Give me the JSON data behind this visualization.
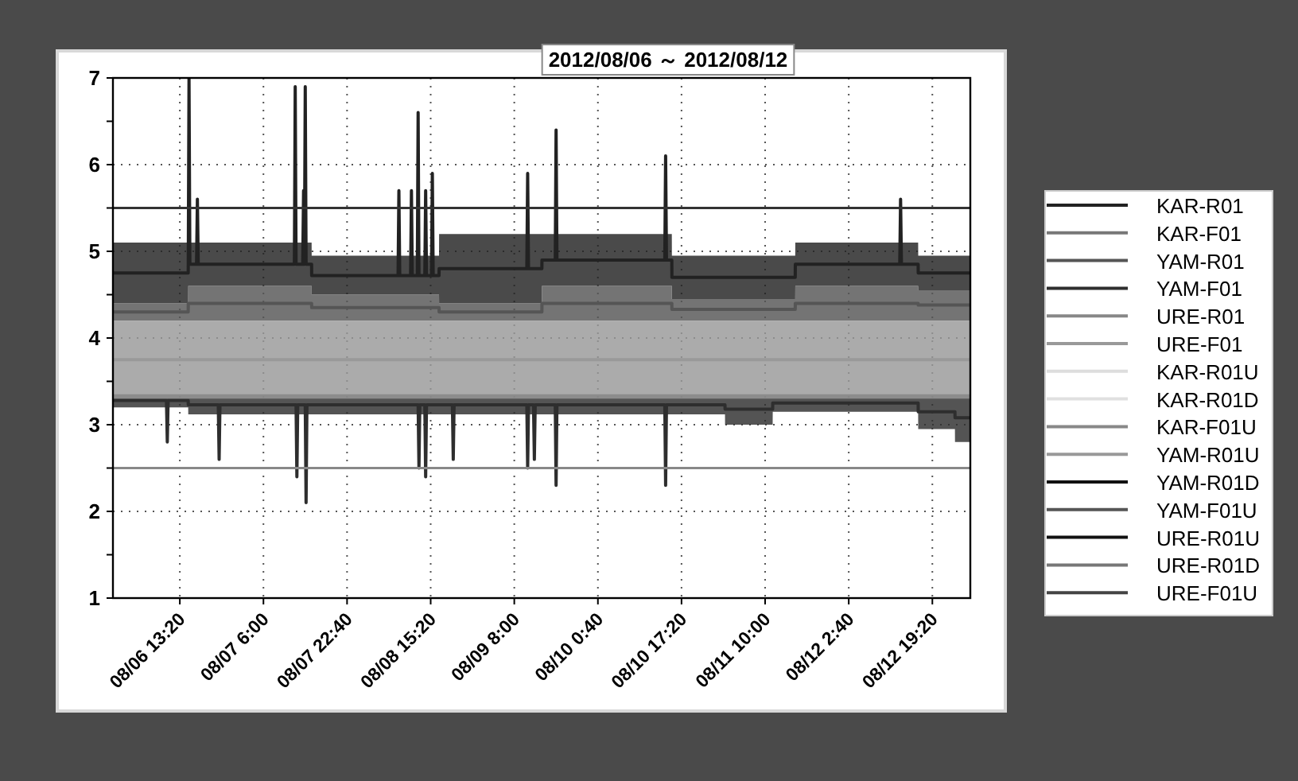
{
  "chart_data": {
    "type": "line",
    "title": "2012/08/06 ～ 2012/08/12",
    "xlim": [
      "2012-08-06T00:00",
      "2012-08-13T02:54"
    ],
    "xticks": [
      {
        "value": "2012-08-06T13:20",
        "label": "08/06 13:20"
      },
      {
        "value": "2012-08-07T06:00",
        "label": "08/07 6:00"
      },
      {
        "value": "2012-08-07T22:40",
        "label": "08/07 22:40"
      },
      {
        "value": "2012-08-08T15:20",
        "label": "08/08 15:20"
      },
      {
        "value": "2012-08-09T08:00",
        "label": "08/09 8:00"
      },
      {
        "value": "2012-08-10T00:40",
        "label": "08/10 0:40"
      },
      {
        "value": "2012-08-10T17:20",
        "label": "08/10 17:20"
      },
      {
        "value": "2012-08-11T10:00",
        "label": "08/11 10:00"
      },
      {
        "value": "2012-08-12T02:40",
        "label": "08/12 2:40"
      },
      {
        "value": "2012-08-12T19:20",
        "label": "08/12 19:20"
      }
    ],
    "ylim": [
      1,
      7
    ],
    "yticks": [
      1,
      {
        "value": 1.5,
        "label": null
      },
      2,
      {
        "value": 2.5,
        "label": null
      },
      3,
      {
        "value": 3.5,
        "label": null
      },
      4,
      {
        "value": 4.5,
        "label": null
      },
      5,
      {
        "value": 5.5,
        "label": null
      },
      6,
      {
        "value": 6.5,
        "label": null
      },
      7
    ],
    "grid": true,
    "legend": "right",
    "ref_lines": [
      {
        "axis": "y",
        "value": 5.5,
        "color": "#333333"
      },
      {
        "axis": "y",
        "value": 2.5,
        "color": "#888888"
      }
    ],
    "series": [
      {
        "name": "KAR-R01",
        "color": "#222222",
        "x": [
          "2012-08-06T00:00",
          "2012-08-06T15:00",
          "2012-08-06T15:01",
          "2012-08-06T15:10",
          "2012-08-06T15:20",
          "2012-08-06T16:40",
          "2012-08-06T16:50",
          "2012-08-06T17:00",
          "2012-08-07T12:10",
          "2012-08-07T12:20",
          "2012-08-07T12:30",
          "2012-08-07T13:50",
          "2012-08-07T14:00",
          "2012-08-07T14:10",
          "2012-08-07T14:20",
          "2012-08-07T14:30",
          "2012-08-07T15:36",
          "2012-08-07T15:37",
          "2012-08-08T08:50",
          "2012-08-08T09:00",
          "2012-08-08T09:10",
          "2012-08-08T11:20",
          "2012-08-08T11:30",
          "2012-08-08T11:40",
          "2012-08-08T12:40",
          "2012-08-08T12:50",
          "2012-08-08T13:00",
          "2012-08-08T14:10",
          "2012-08-08T14:20",
          "2012-08-08T14:30",
          "2012-08-08T15:30",
          "2012-08-08T15:40",
          "2012-08-08T15:50",
          "2012-08-08T17:00",
          "2012-08-08T17:01",
          "2012-08-09T10:30",
          "2012-08-09T10:40",
          "2012-08-09T10:50",
          "2012-08-09T13:30",
          "2012-08-09T13:31",
          "2012-08-09T16:10",
          "2012-08-09T16:20",
          "2012-08-09T16:30",
          "2012-08-10T14:00",
          "2012-08-10T14:10",
          "2012-08-10T14:20",
          "2012-08-10T15:24",
          "2012-08-10T15:25",
          "2012-08-11T16:00",
          "2012-08-11T16:01",
          "2012-08-12T12:50",
          "2012-08-12T13:00",
          "2012-08-12T13:10",
          "2012-08-12T16:30",
          "2012-08-12T16:31",
          "2012-08-13T02:54"
        ],
        "values": [
          4.75,
          4.75,
          4.85,
          7.0,
          4.85,
          4.85,
          5.6,
          4.85,
          4.85,
          6.9,
          4.85,
          4.85,
          5.7,
          4.85,
          6.9,
          4.85,
          4.85,
          4.72,
          4.72,
          5.7,
          4.72,
          4.72,
          5.7,
          4.72,
          4.72,
          6.6,
          4.72,
          4.72,
          5.7,
          4.72,
          4.72,
          5.9,
          4.72,
          4.72,
          4.8,
          4.8,
          5.9,
          4.8,
          4.8,
          4.9,
          4.9,
          6.4,
          4.9,
          4.9,
          6.1,
          4.9,
          4.9,
          4.7,
          4.7,
          4.85,
          4.85,
          5.6,
          4.85,
          4.85,
          4.75,
          4.75
        ],
        "lower": [
          4.4,
          4.4,
          4.6,
          4.6,
          4.6,
          4.6,
          4.6,
          4.6,
          4.6,
          4.6,
          4.6,
          4.6,
          4.6,
          4.6,
          4.6,
          4.6,
          4.6,
          4.5,
          4.5,
          4.5,
          4.5,
          4.5,
          4.5,
          4.5,
          4.5,
          4.5,
          4.5,
          4.5,
          4.5,
          4.5,
          4.5,
          4.5,
          4.5,
          4.5,
          4.4,
          4.4,
          4.4,
          4.4,
          4.4,
          4.6,
          4.6,
          4.6,
          4.6,
          4.6,
          4.6,
          4.6,
          4.6,
          4.45,
          4.45,
          4.6,
          4.6,
          4.6,
          4.6,
          4.6,
          4.55,
          4.55
        ],
        "upper": [
          5.1,
          5.1,
          5.1,
          5.1,
          5.1,
          5.1,
          5.1,
          5.1,
          5.1,
          5.1,
          5.1,
          5.1,
          5.1,
          5.1,
          5.1,
          5.1,
          5.1,
          4.95,
          4.95,
          4.95,
          4.95,
          4.95,
          4.95,
          4.95,
          4.95,
          4.95,
          4.95,
          4.95,
          4.95,
          4.95,
          4.95,
          4.95,
          4.95,
          4.95,
          5.2,
          5.2,
          5.2,
          5.2,
          5.2,
          5.2,
          5.2,
          5.2,
          5.2,
          5.2,
          5.2,
          5.2,
          5.2,
          4.95,
          4.95,
          5.1,
          5.1,
          5.1,
          5.1,
          5.1,
          4.95,
          4.95
        ]
      },
      {
        "name": "KAR-F01",
        "color": "#777777"
      },
      {
        "name": "YAM-R01",
        "color": "#555555",
        "x": [
          "2012-08-06T00:00",
          "2012-08-06T15:00",
          "2012-08-06T15:01",
          "2012-08-07T15:36",
          "2012-08-07T15:37",
          "2012-08-08T17:00",
          "2012-08-08T17:01",
          "2012-08-09T13:30",
          "2012-08-09T13:31",
          "2012-08-10T15:24",
          "2012-08-10T15:25",
          "2012-08-11T16:00",
          "2012-08-11T16:01",
          "2012-08-12T16:30",
          "2012-08-12T16:31",
          "2012-08-13T02:54"
        ],
        "values": [
          4.3,
          4.3,
          4.4,
          4.4,
          4.35,
          4.35,
          4.3,
          4.3,
          4.4,
          4.4,
          4.33,
          4.33,
          4.4,
          4.4,
          4.38,
          4.38
        ],
        "lower": [
          4.2,
          4.2,
          4.2,
          4.2,
          4.2,
          4.2,
          4.2,
          4.2,
          4.2,
          4.2,
          4.2,
          4.2,
          4.2,
          4.2,
          4.2,
          4.2
        ],
        "upper": [
          4.4,
          4.4,
          4.6,
          4.6,
          4.5,
          4.5,
          4.4,
          4.4,
          4.6,
          4.6,
          4.45,
          4.45,
          4.6,
          4.6,
          4.55,
          4.55
        ]
      },
      {
        "name": "YAM-F01",
        "color": "#2e2e2e",
        "x": [
          "2012-08-06T00:00",
          "2012-08-06T10:40",
          "2012-08-06T10:50",
          "2012-08-06T11:00",
          "2012-08-06T15:00",
          "2012-08-06T15:01",
          "2012-08-06T21:00",
          "2012-08-06T21:10",
          "2012-08-06T21:20",
          "2012-08-07T12:30",
          "2012-08-07T12:40",
          "2012-08-07T12:50",
          "2012-08-07T14:20",
          "2012-08-07T14:30",
          "2012-08-07T14:40",
          "2012-08-08T12:50",
          "2012-08-08T13:00",
          "2012-08-08T13:10",
          "2012-08-08T14:10",
          "2012-08-08T14:20",
          "2012-08-08T14:30",
          "2012-08-08T19:40",
          "2012-08-08T19:50",
          "2012-08-08T20:00",
          "2012-08-09T10:30",
          "2012-08-09T10:40",
          "2012-08-09T10:50",
          "2012-08-09T11:50",
          "2012-08-09T12:00",
          "2012-08-09T12:10",
          "2012-08-09T16:10",
          "2012-08-09T16:20",
          "2012-08-09T16:30",
          "2012-08-10T14:00",
          "2012-08-10T14:10",
          "2012-08-10T14:20",
          "2012-08-11T02:00",
          "2012-08-11T02:01",
          "2012-08-11T11:30",
          "2012-08-11T11:31",
          "2012-08-12T16:30",
          "2012-08-12T16:31",
          "2012-08-12T23:50",
          "2012-08-12T23:51",
          "2012-08-13T02:54"
        ],
        "values": [
          3.28,
          3.28,
          2.8,
          3.28,
          3.28,
          3.23,
          3.23,
          2.6,
          3.23,
          3.23,
          2.4,
          3.23,
          3.23,
          2.1,
          3.23,
          3.23,
          2.5,
          3.23,
          3.23,
          2.4,
          3.23,
          3.23,
          2.6,
          3.23,
          3.23,
          2.5,
          3.23,
          3.23,
          2.6,
          3.23,
          3.23,
          2.3,
          3.23,
          3.23,
          2.3,
          3.23,
          3.23,
          3.18,
          3.18,
          3.25,
          3.25,
          3.15,
          3.15,
          3.08,
          3.08
        ],
        "lower": [
          3.2,
          3.2,
          3.2,
          3.2,
          3.2,
          3.12,
          3.12,
          3.12,
          3.12,
          3.12,
          3.12,
          3.12,
          3.12,
          3.12,
          3.12,
          3.12,
          3.12,
          3.12,
          3.12,
          3.12,
          3.12,
          3.12,
          3.12,
          3.12,
          3.12,
          3.12,
          3.12,
          3.12,
          3.12,
          3.12,
          3.12,
          3.12,
          3.12,
          3.12,
          3.12,
          3.12,
          3.12,
          3.0,
          3.0,
          3.15,
          3.15,
          2.95,
          2.95,
          2.8,
          2.8
        ],
        "upper": [
          3.35,
          3.35,
          3.35,
          3.35,
          3.35,
          3.35,
          3.35,
          3.35,
          3.35,
          3.35,
          3.35,
          3.35,
          3.35,
          3.35,
          3.35,
          3.35,
          3.35,
          3.35,
          3.35,
          3.35,
          3.35,
          3.35,
          3.35,
          3.35,
          3.35,
          3.35,
          3.35,
          3.35,
          3.35,
          3.35,
          3.35,
          3.35,
          3.35,
          3.35,
          3.35,
          3.35,
          3.35,
          3.35,
          3.35,
          3.35,
          3.35,
          3.35,
          3.35,
          3.35,
          3.35
        ]
      },
      {
        "name": "URE-R01",
        "color": "#888888"
      },
      {
        "name": "URE-F01",
        "color": "#999999",
        "x": [
          "2012-08-06T00:00",
          "2012-08-13T02:54"
        ],
        "values": [
          3.75,
          3.75
        ],
        "lower": [
          3.3,
          3.3
        ],
        "upper": [
          4.2,
          4.2
        ]
      },
      {
        "name": "KAR-R01U",
        "color": "#dddddd"
      },
      {
        "name": "KAR-R01D",
        "color": "#e0e0e0"
      },
      {
        "name": "KAR-F01U",
        "color": "#888888"
      },
      {
        "name": "YAM-R01U",
        "color": "#999999"
      },
      {
        "name": "YAM-R01D",
        "color": "#111111"
      },
      {
        "name": "YAM-F01U",
        "color": "#555555"
      },
      {
        "name": "URE-R01U",
        "color": "#111111"
      },
      {
        "name": "URE-R01D",
        "color": "#777777"
      },
      {
        "name": "URE-F01U",
        "color": "#444444"
      }
    ]
  }
}
